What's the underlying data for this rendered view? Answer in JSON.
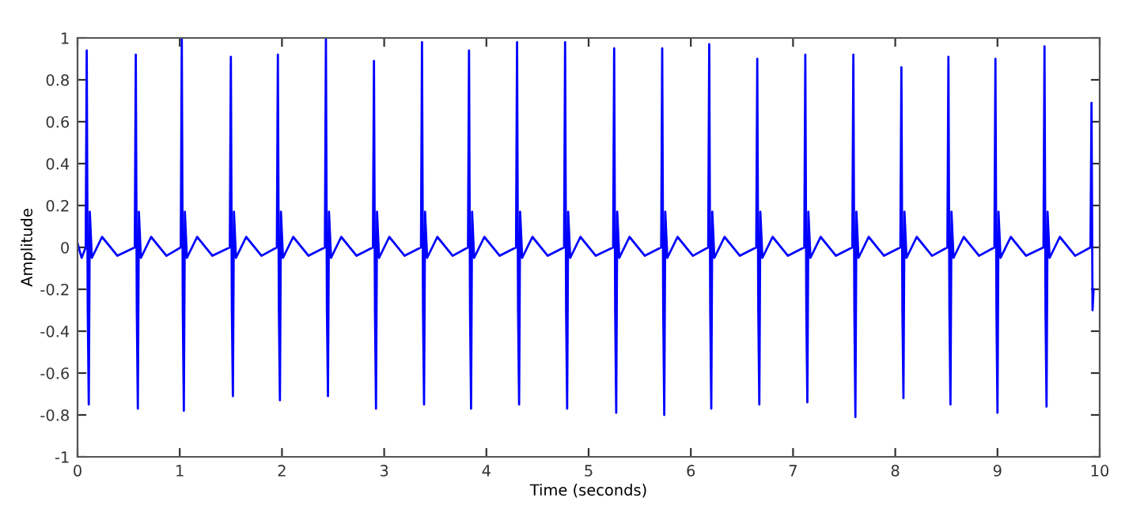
{
  "chart_data": {
    "type": "line",
    "xlabel": "Time (seconds)",
    "ylabel": "Amplitude",
    "xlim": [
      0,
      10
    ],
    "ylim": [
      -1,
      1
    ],
    "xticks": [
      0,
      1,
      2,
      3,
      4,
      5,
      6,
      7,
      8,
      9,
      10
    ],
    "yticks": [
      -1,
      -0.8,
      -0.6,
      -0.4,
      -0.2,
      0,
      0.2,
      0.4,
      0.6,
      0.8,
      1
    ],
    "grid": false,
    "marker": "none",
    "line_style": "solid",
    "series": [
      {
        "color": "#0000ff",
        "x": [
          0.0,
          0.04,
          0.08,
          0.09,
          0.1,
          0.11,
          0.12,
          0.14,
          0.24,
          0.39,
          0.56,
          0.57,
          0.58,
          0.59,
          0.6,
          0.62,
          0.72,
          0.87,
          1.01,
          1.02,
          1.03,
          1.04,
          1.05,
          1.07,
          1.17,
          1.32,
          1.49,
          1.5,
          1.51,
          1.52,
          1.53,
          1.55,
          1.65,
          1.8,
          1.95,
          1.96,
          1.97,
          1.98,
          1.99,
          2.01,
          2.11,
          2.26,
          2.42,
          2.43,
          2.44,
          2.45,
          2.46,
          2.48,
          2.58,
          2.73,
          2.89,
          2.9,
          2.91,
          2.92,
          2.93,
          2.95,
          3.05,
          3.2,
          3.36,
          3.37,
          3.38,
          3.39,
          3.4,
          3.42,
          3.52,
          3.67,
          3.82,
          3.83,
          3.84,
          3.85,
          3.86,
          3.88,
          3.98,
          4.13,
          4.29,
          4.3,
          4.31,
          4.32,
          4.33,
          4.35,
          4.45,
          4.6,
          4.76,
          4.77,
          4.78,
          4.79,
          4.8,
          4.82,
          4.92,
          5.07,
          5.24,
          5.25,
          5.26,
          5.27,
          5.28,
          5.3,
          5.4,
          5.55,
          5.71,
          5.72,
          5.73,
          5.74,
          5.75,
          5.77,
          5.87,
          6.02,
          6.17,
          6.18,
          6.19,
          6.2,
          6.21,
          6.23,
          6.33,
          6.48,
          6.64,
          6.65,
          6.66,
          6.67,
          6.68,
          6.7,
          6.8,
          6.95,
          7.11,
          7.12,
          7.13,
          7.14,
          7.15,
          7.17,
          7.27,
          7.42,
          7.58,
          7.59,
          7.6,
          7.61,
          7.62,
          7.64,
          7.74,
          7.89,
          8.05,
          8.06,
          8.07,
          8.08,
          8.09,
          8.11,
          8.21,
          8.36,
          8.51,
          8.52,
          8.53,
          8.54,
          8.55,
          8.57,
          8.67,
          8.82,
          8.97,
          8.98,
          8.99,
          9.0,
          9.01,
          9.03,
          9.13,
          9.28,
          9.45,
          9.46,
          9.47,
          9.48,
          9.49,
          9.51,
          9.61,
          9.76,
          9.91,
          9.92,
          9.93,
          9.94
        ],
        "values": [
          0.02,
          -0.05,
          0.0,
          0.94,
          -0.3,
          -0.75,
          0.17,
          -0.05,
          0.05,
          -0.04,
          0.0,
          0.92,
          -0.3,
          -0.77,
          0.17,
          -0.05,
          0.05,
          -0.04,
          0.0,
          1.0,
          -0.3,
          -0.78,
          0.17,
          -0.05,
          0.05,
          -0.04,
          0.0,
          0.91,
          -0.3,
          -0.71,
          0.17,
          -0.05,
          0.05,
          -0.04,
          0.0,
          0.92,
          -0.3,
          -0.73,
          0.17,
          -0.05,
          0.05,
          -0.04,
          0.0,
          1.0,
          -0.3,
          -0.71,
          0.17,
          -0.05,
          0.05,
          -0.04,
          0.0,
          0.89,
          -0.3,
          -0.77,
          0.17,
          -0.05,
          0.05,
          -0.04,
          0.0,
          0.98,
          -0.3,
          -0.75,
          0.17,
          -0.05,
          0.05,
          -0.04,
          0.0,
          0.94,
          -0.3,
          -0.77,
          0.17,
          -0.05,
          0.05,
          -0.04,
          0.0,
          0.98,
          -0.3,
          -0.75,
          0.17,
          -0.05,
          0.05,
          -0.04,
          0.0,
          0.98,
          -0.3,
          -0.77,
          0.17,
          -0.05,
          0.05,
          -0.04,
          0.0,
          0.95,
          -0.3,
          -0.79,
          0.17,
          -0.05,
          0.05,
          -0.04,
          0.0,
          0.95,
          -0.3,
          -0.8,
          0.17,
          -0.05,
          0.05,
          -0.04,
          0.0,
          0.97,
          -0.3,
          -0.77,
          0.17,
          -0.05,
          0.05,
          -0.04,
          0.0,
          0.9,
          -0.3,
          -0.75,
          0.17,
          -0.05,
          0.05,
          -0.04,
          0.0,
          0.92,
          -0.3,
          -0.74,
          0.17,
          -0.05,
          0.05,
          -0.04,
          0.0,
          0.92,
          -0.3,
          -0.81,
          0.17,
          -0.05,
          0.05,
          -0.04,
          0.0,
          0.86,
          -0.3,
          -0.72,
          0.17,
          -0.05,
          0.05,
          -0.04,
          0.0,
          0.91,
          -0.3,
          -0.75,
          0.17,
          -0.05,
          0.05,
          -0.04,
          0.0,
          0.9,
          -0.3,
          -0.79,
          0.17,
          -0.05,
          0.05,
          -0.04,
          0.0,
          0.96,
          -0.3,
          -0.76,
          0.17,
          -0.05,
          0.05,
          -0.04,
          0.0,
          0.69,
          -0.3,
          -0.2
        ]
      }
    ]
  }
}
